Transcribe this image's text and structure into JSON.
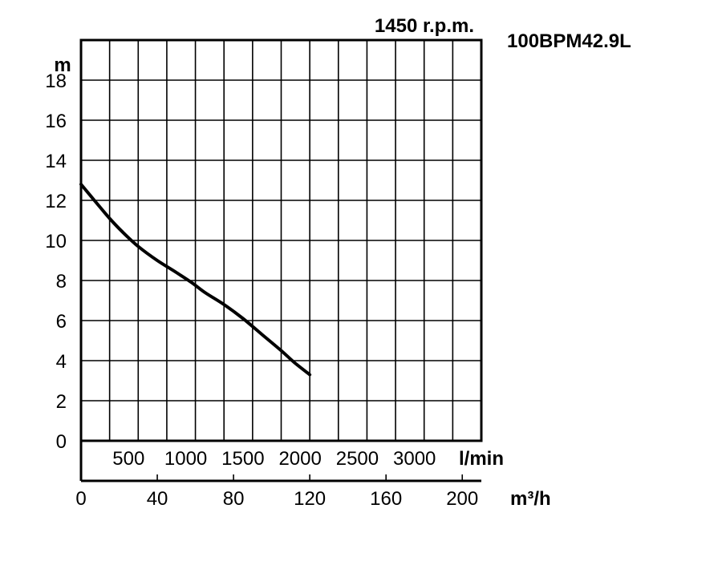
{
  "chart_data": {
    "type": "line",
    "title": "1450 r.p.m.",
    "model": "100BPM42.9L",
    "ylabel": "m",
    "xlabel": "m³/h",
    "x2label": "l/min",
    "xlim": [
      0,
      210
    ],
    "ylim": [
      0,
      20
    ],
    "yticks": [
      "0",
      "2",
      "4",
      "6",
      "8",
      "10",
      "12",
      "14",
      "16",
      "18"
    ],
    "xticks": [
      "0",
      "40",
      "80",
      "120",
      "160",
      "200"
    ],
    "x2ticks": [
      "500",
      "1000",
      "1500",
      "2000",
      "2500",
      "3000"
    ],
    "grid": true,
    "series": [
      {
        "x": [
          0,
          7,
          15,
          22,
          30,
          40,
          50,
          58,
          65,
          75,
          85,
          95,
          105,
          112,
          120
        ],
        "y": [
          12.8,
          12.0,
          11.1,
          10.4,
          9.7,
          9.0,
          8.4,
          7.9,
          7.4,
          6.8,
          6.1,
          5.3,
          4.5,
          3.9,
          3.3
        ]
      }
    ]
  }
}
